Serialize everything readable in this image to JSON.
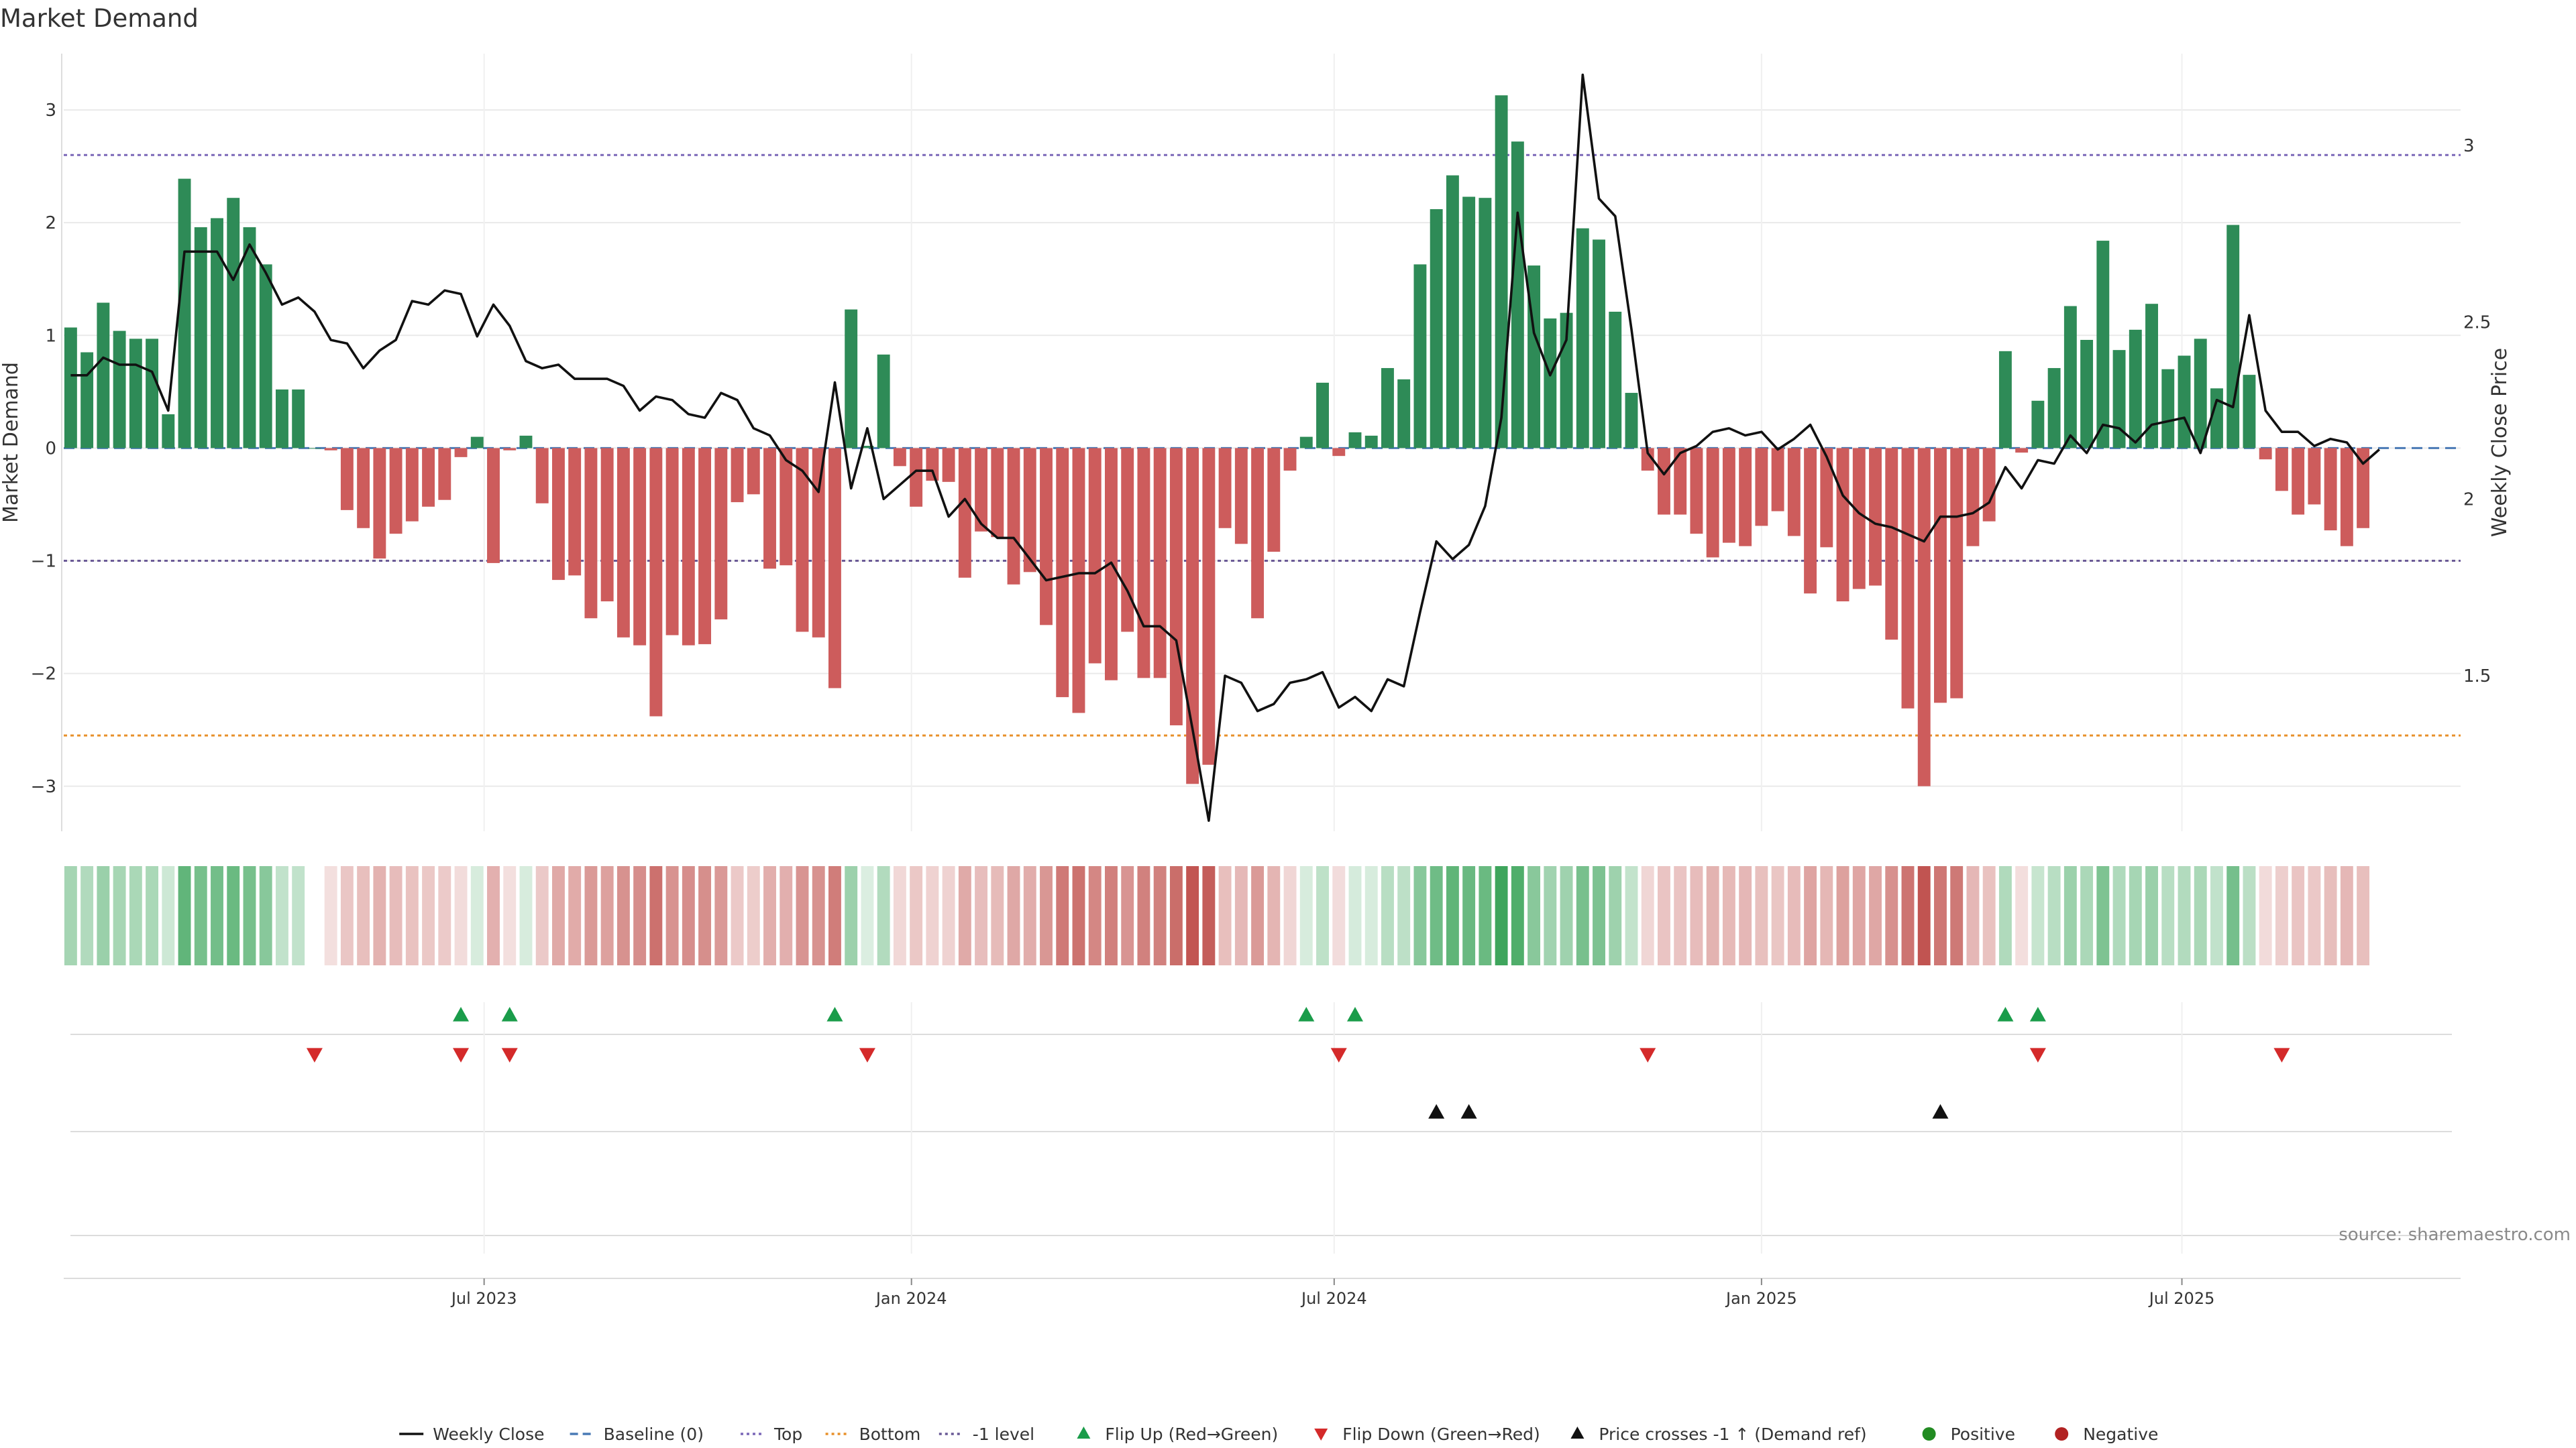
{
  "chart_data": {
    "type": "bar",
    "title": "Market Demand",
    "ylabel": "Market Demand",
    "y2label": "Weekly Close Price",
    "ylim": [
      -3.4,
      3.5
    ],
    "y2lim": [
      1.06,
      3.26
    ],
    "yticks": [
      -3,
      -2,
      -1,
      0,
      1,
      2,
      3
    ],
    "y2ticks": [
      1.5,
      2,
      2.5,
      3
    ],
    "xlim": [
      "2023-01-01",
      "2025-10-29"
    ],
    "xticks": [
      {
        "date": "2023-07-01",
        "label": "Jul 2023"
      },
      {
        "date": "2024-01-01",
        "label": "Jan 2024"
      },
      {
        "date": "2024-07-01",
        "label": "Jul 2024"
      },
      {
        "date": "2025-01-01",
        "label": "Jan 2025"
      },
      {
        "date": "2025-07-01",
        "label": "Jul 2025"
      }
    ],
    "start_date": "2023-01-04",
    "week_days": 7,
    "reference_lines": [
      {
        "name": "Baseline (0)",
        "y": 0,
        "color": "#4a7ab5",
        "style": "dashed"
      },
      {
        "name": "Top",
        "y": 2.6,
        "color": "#7b68b8",
        "style": "dotted"
      },
      {
        "name": "Bottom",
        "y": -2.55,
        "color": "#e8902a",
        "style": "dotted"
      },
      {
        "name": "-1 level",
        "y": -1,
        "color": "#6a5a96",
        "style": "dotted"
      }
    ],
    "series": [
      {
        "name": "Market Demand",
        "type": "bar",
        "values": [
          1.07,
          0.85,
          1.29,
          1.04,
          0.97,
          0.97,
          0.3,
          2.39,
          1.96,
          2.04,
          2.22,
          1.96,
          1.63,
          0.52,
          0.52,
          0.0,
          -0.02,
          -0.55,
          -0.71,
          -0.98,
          -0.76,
          -0.65,
          -0.52,
          -0.46,
          -0.08,
          0.1,
          -1.02,
          -0.02,
          0.11,
          -0.49,
          -1.17,
          -1.13,
          -1.51,
          -1.36,
          -1.68,
          -1.75,
          -2.38,
          -1.66,
          -1.75,
          -1.74,
          -1.52,
          -0.48,
          -0.41,
          -1.07,
          -1.04,
          -1.63,
          -1.68,
          -2.13,
          1.23,
          0.02,
          0.83,
          -0.16,
          -0.52,
          -0.29,
          -0.3,
          -1.15,
          -0.74,
          -0.79,
          -1.21,
          -1.1,
          -1.57,
          -2.21,
          -2.35,
          -1.91,
          -2.06,
          -1.63,
          -2.04,
          -2.04,
          -2.46,
          -2.98,
          -2.81,
          -0.71,
          -0.85,
          -1.51,
          -0.92,
          -0.2,
          0.1,
          0.58,
          -0.07,
          0.14,
          0.11,
          0.71,
          0.61,
          1.63,
          2.12,
          2.42,
          2.23,
          2.22,
          3.13,
          2.72,
          1.62,
          1.15,
          1.2,
          1.95,
          1.85,
          1.21,
          0.49,
          -0.2,
          -0.59,
          -0.59,
          -0.76,
          -0.97,
          -0.84,
          -0.87,
          -0.69,
          -0.56,
          -0.78,
          -1.29,
          -0.88,
          -1.36,
          -1.25,
          -1.22,
          -1.7,
          -2.31,
          -3.0,
          -2.26,
          -2.22,
          -0.87,
          -0.65,
          0.86,
          -0.04,
          0.42,
          0.71,
          1.26,
          0.96,
          1.84,
          0.87,
          1.05,
          1.28,
          0.7,
          0.82,
          0.97,
          0.53,
          1.98,
          0.65,
          -0.1,
          -0.38,
          -0.59,
          -0.5,
          -0.73,
          -0.87,
          -0.71
        ]
      },
      {
        "name": "Weekly Close",
        "type": "line",
        "axis": "y2",
        "values": [
          2.35,
          2.35,
          2.4,
          2.38,
          2.38,
          2.36,
          2.25,
          2.7,
          2.7,
          2.7,
          2.62,
          2.72,
          2.64,
          2.55,
          2.57,
          2.53,
          2.45,
          2.44,
          2.37,
          2.42,
          2.45,
          2.56,
          2.55,
          2.59,
          2.58,
          2.46,
          2.55,
          2.49,
          2.39,
          2.37,
          2.38,
          2.34,
          2.34,
          2.34,
          2.32,
          2.25,
          2.29,
          2.28,
          2.24,
          2.23,
          2.3,
          2.28,
          2.2,
          2.18,
          2.11,
          2.08,
          2.02,
          2.33,
          2.03,
          2.2,
          2.0,
          2.04,
          2.08,
          2.08,
          1.95,
          2.0,
          1.93,
          1.89,
          1.89,
          1.83,
          1.77,
          1.78,
          1.79,
          1.79,
          1.82,
          1.74,
          1.64,
          1.64,
          1.6,
          1.35,
          1.09,
          1.5,
          1.48,
          1.4,
          1.42,
          1.48,
          1.49,
          1.51,
          1.41,
          1.44,
          1.4,
          1.49,
          1.47,
          1.68,
          1.88,
          1.83,
          1.87,
          1.98,
          2.23,
          2.81,
          2.47,
          2.35,
          2.45,
          3.2,
          2.85,
          2.8,
          2.48,
          2.13,
          2.07,
          2.13,
          2.15,
          2.19,
          2.2,
          2.18,
          2.19,
          2.14,
          2.17,
          2.21,
          2.12,
          2.01,
          1.96,
          1.93,
          1.92,
          1.9,
          1.88,
          1.95,
          1.95,
          1.96,
          1.99,
          2.09,
          2.03,
          2.11,
          2.1,
          2.18,
          2.13,
          2.21,
          2.2,
          2.16,
          2.21,
          2.22,
          2.23,
          2.13,
          2.28,
          2.26,
          2.52,
          2.25,
          2.19,
          2.19,
          2.15,
          2.17,
          2.16,
          2.1,
          2.14
        ]
      }
    ],
    "heatmap_strip": {
      "color_positive": "#3ea55c",
      "color_negative": "#c0514d"
    },
    "events": {
      "flip_up_indices": [
        24,
        27,
        47,
        76,
        79,
        119,
        121
      ],
      "flip_down_indices": [
        15,
        24,
        27,
        49,
        78,
        97,
        121,
        136
      ],
      "price_cross_indices": [
        84,
        86,
        115
      ]
    },
    "colors": {
      "positive_bar": "#2e8b57",
      "negative_bar": "#cd5c5c",
      "line": "#111111",
      "flip_up": "#1a9c4a",
      "flip_down": "#d42a2a",
      "cross": "#111111",
      "positive_dot": "#228b22",
      "negative_dot": "#b22222"
    },
    "legend": {
      "placement": "bottom",
      "items": [
        {
          "label": "Weekly Close",
          "kind": "line-solid",
          "color": "#111111"
        },
        {
          "label": "Baseline (0)",
          "kind": "line-dashed",
          "color": "#4a7ab5"
        },
        {
          "label": "Top",
          "kind": "line-dotted",
          "color": "#7b68b8"
        },
        {
          "label": "Bottom",
          "kind": "line-dotted",
          "color": "#e8902a"
        },
        {
          "label": "-1 level",
          "kind": "line-dotted",
          "color": "#6a5a96"
        },
        {
          "label": "Flip Up (Red→Green)",
          "kind": "triangle-up",
          "color": "#1a9c4a"
        },
        {
          "label": "Flip Down (Green→Red)",
          "kind": "triangle-down",
          "color": "#d42a2a"
        },
        {
          "label": "Price crosses -1 ↑ (Demand ref)",
          "kind": "triangle-up",
          "color": "#111111"
        },
        {
          "label": "Positive",
          "kind": "dot",
          "color": "#228b22"
        },
        {
          "label": "Negative",
          "kind": "dot",
          "color": "#b22222"
        }
      ]
    },
    "source": "source: sharemaestro.com"
  }
}
